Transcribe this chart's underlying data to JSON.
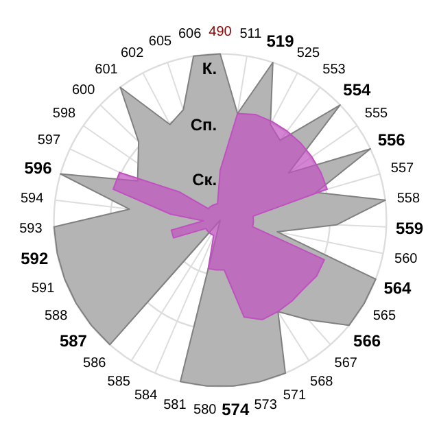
{
  "chart_data": {
    "type": "radar",
    "categories": [
      "490",
      "511",
      "519",
      "525",
      "553",
      "554",
      "555",
      "556",
      "557",
      "558",
      "559",
      "560",
      "564",
      "565",
      "566",
      "567",
      "568",
      "571",
      "573",
      "574",
      "580",
      "581",
      "584",
      "585",
      "586",
      "587",
      "588",
      "591",
      "592",
      "593",
      "594",
      "596",
      "597",
      "598",
      "600",
      "601",
      "602",
      "605",
      "606"
    ],
    "series": [
      {
        "color": "#b4b4b4",
        "values": [
          1.0,
          0.65,
          1.0,
          0.65,
          0.6,
          1.0,
          0.5,
          1.0,
          0.6,
          1.0,
          0.7,
          0.35,
          1.0,
          1.0,
          1.0,
          0.8,
          0.65,
          1.0,
          1.0,
          1.0,
          1.0,
          1.0,
          0,
          0,
          1.0,
          1.0,
          1.0,
          1.0,
          1.0,
          1.0,
          0.55,
          1.0,
          0.55,
          0.6,
          0.68,
          1.0,
          0.65,
          0.7,
          1.0
        ]
      },
      {
        "color": "#c050c0",
        "values": [
          0.3,
          0.65,
          0.67,
          0.67,
          0.67,
          0.67,
          0.67,
          0.67,
          0.67,
          0.2,
          0.2,
          0.2,
          0.67,
          0.67,
          0.65,
          0.65,
          0.65,
          0.65,
          0.6,
          0.3,
          0.3,
          0.3,
          0.1,
          0.1,
          0.1,
          0.1,
          0.1,
          0.3,
          0.3,
          0.1,
          0.3,
          0.67,
          0.67,
          0.3,
          0.1,
          0.1,
          0.1,
          0.1,
          0.1
        ]
      }
    ],
    "ylim": [
      0,
      1
    ],
    "yticks": [
      {
        "value": 0.33,
        "label": "Ск."
      },
      {
        "value": 0.66,
        "label": "Сп."
      },
      {
        "value": 1.0,
        "label": "К."
      }
    ],
    "grid": true
  }
}
